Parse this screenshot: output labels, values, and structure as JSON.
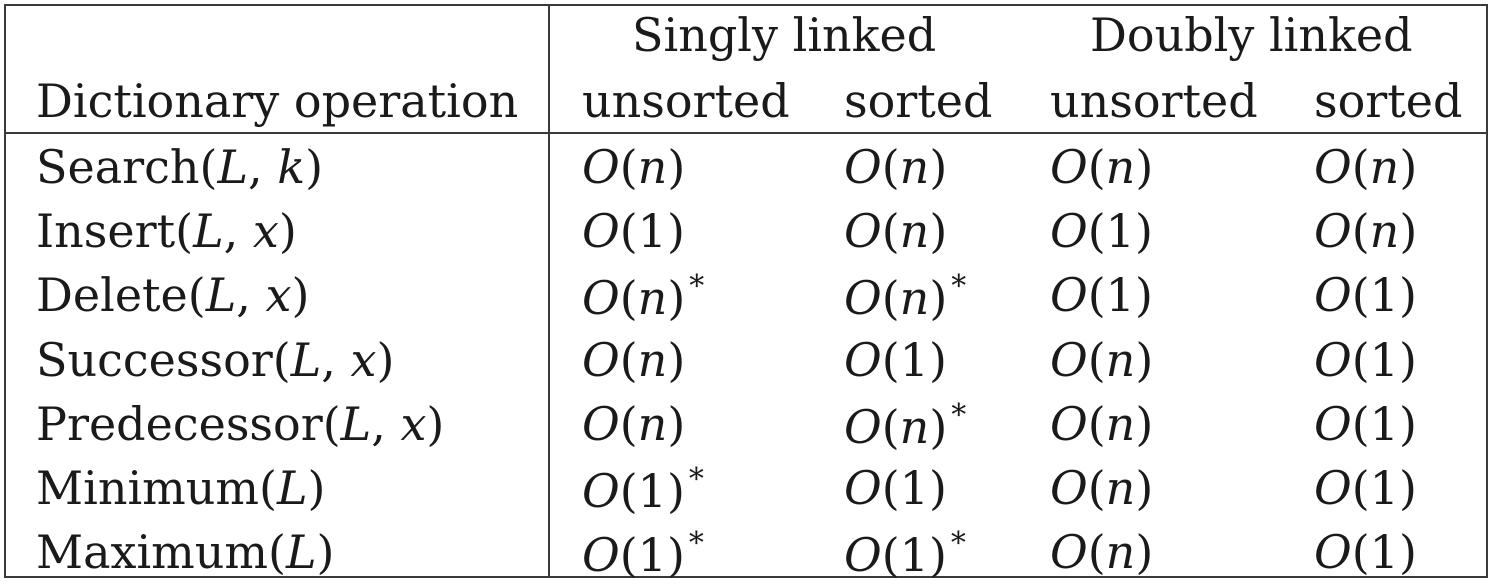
{
  "header": {
    "row_label": "Dictionary operation",
    "groups": [
      "Singly linked",
      "Doubly linked"
    ],
    "columns": [
      "unsorted",
      "sorted",
      "unsorted",
      "sorted"
    ]
  },
  "rows": [
    {
      "operation": "Search",
      "args": "L, k",
      "values": [
        "O(n)",
        "O(n)",
        "O(n)",
        "O(n)"
      ],
      "starred": [
        false,
        false,
        false,
        false
      ]
    },
    {
      "operation": "Insert",
      "args": "L, x",
      "values": [
        "O(1)",
        "O(n)",
        "O(1)",
        "O(n)"
      ],
      "starred": [
        false,
        false,
        false,
        false
      ]
    },
    {
      "operation": "Delete",
      "args": "L, x",
      "values": [
        "O(n)",
        "O(n)",
        "O(1)",
        "O(1)"
      ],
      "starred": [
        true,
        true,
        false,
        false
      ]
    },
    {
      "operation": "Successor",
      "args": "L, x",
      "values": [
        "O(n)",
        "O(1)",
        "O(n)",
        "O(1)"
      ],
      "starred": [
        false,
        false,
        false,
        false
      ]
    },
    {
      "operation": "Predecessor",
      "args": "L, x",
      "values": [
        "O(n)",
        "O(n)",
        "O(n)",
        "O(1)"
      ],
      "starred": [
        false,
        true,
        false,
        false
      ]
    },
    {
      "operation": "Minimum",
      "args": "L",
      "values": [
        "O(1)",
        "O(1)",
        "O(n)",
        "O(1)"
      ],
      "starred": [
        true,
        false,
        false,
        false
      ]
    },
    {
      "operation": "Maximum",
      "args": "L",
      "values": [
        "O(1)",
        "O(1)",
        "O(n)",
        "O(1)"
      ],
      "starred": [
        true,
        true,
        false,
        false
      ]
    }
  ],
  "footnote_marker": "*"
}
